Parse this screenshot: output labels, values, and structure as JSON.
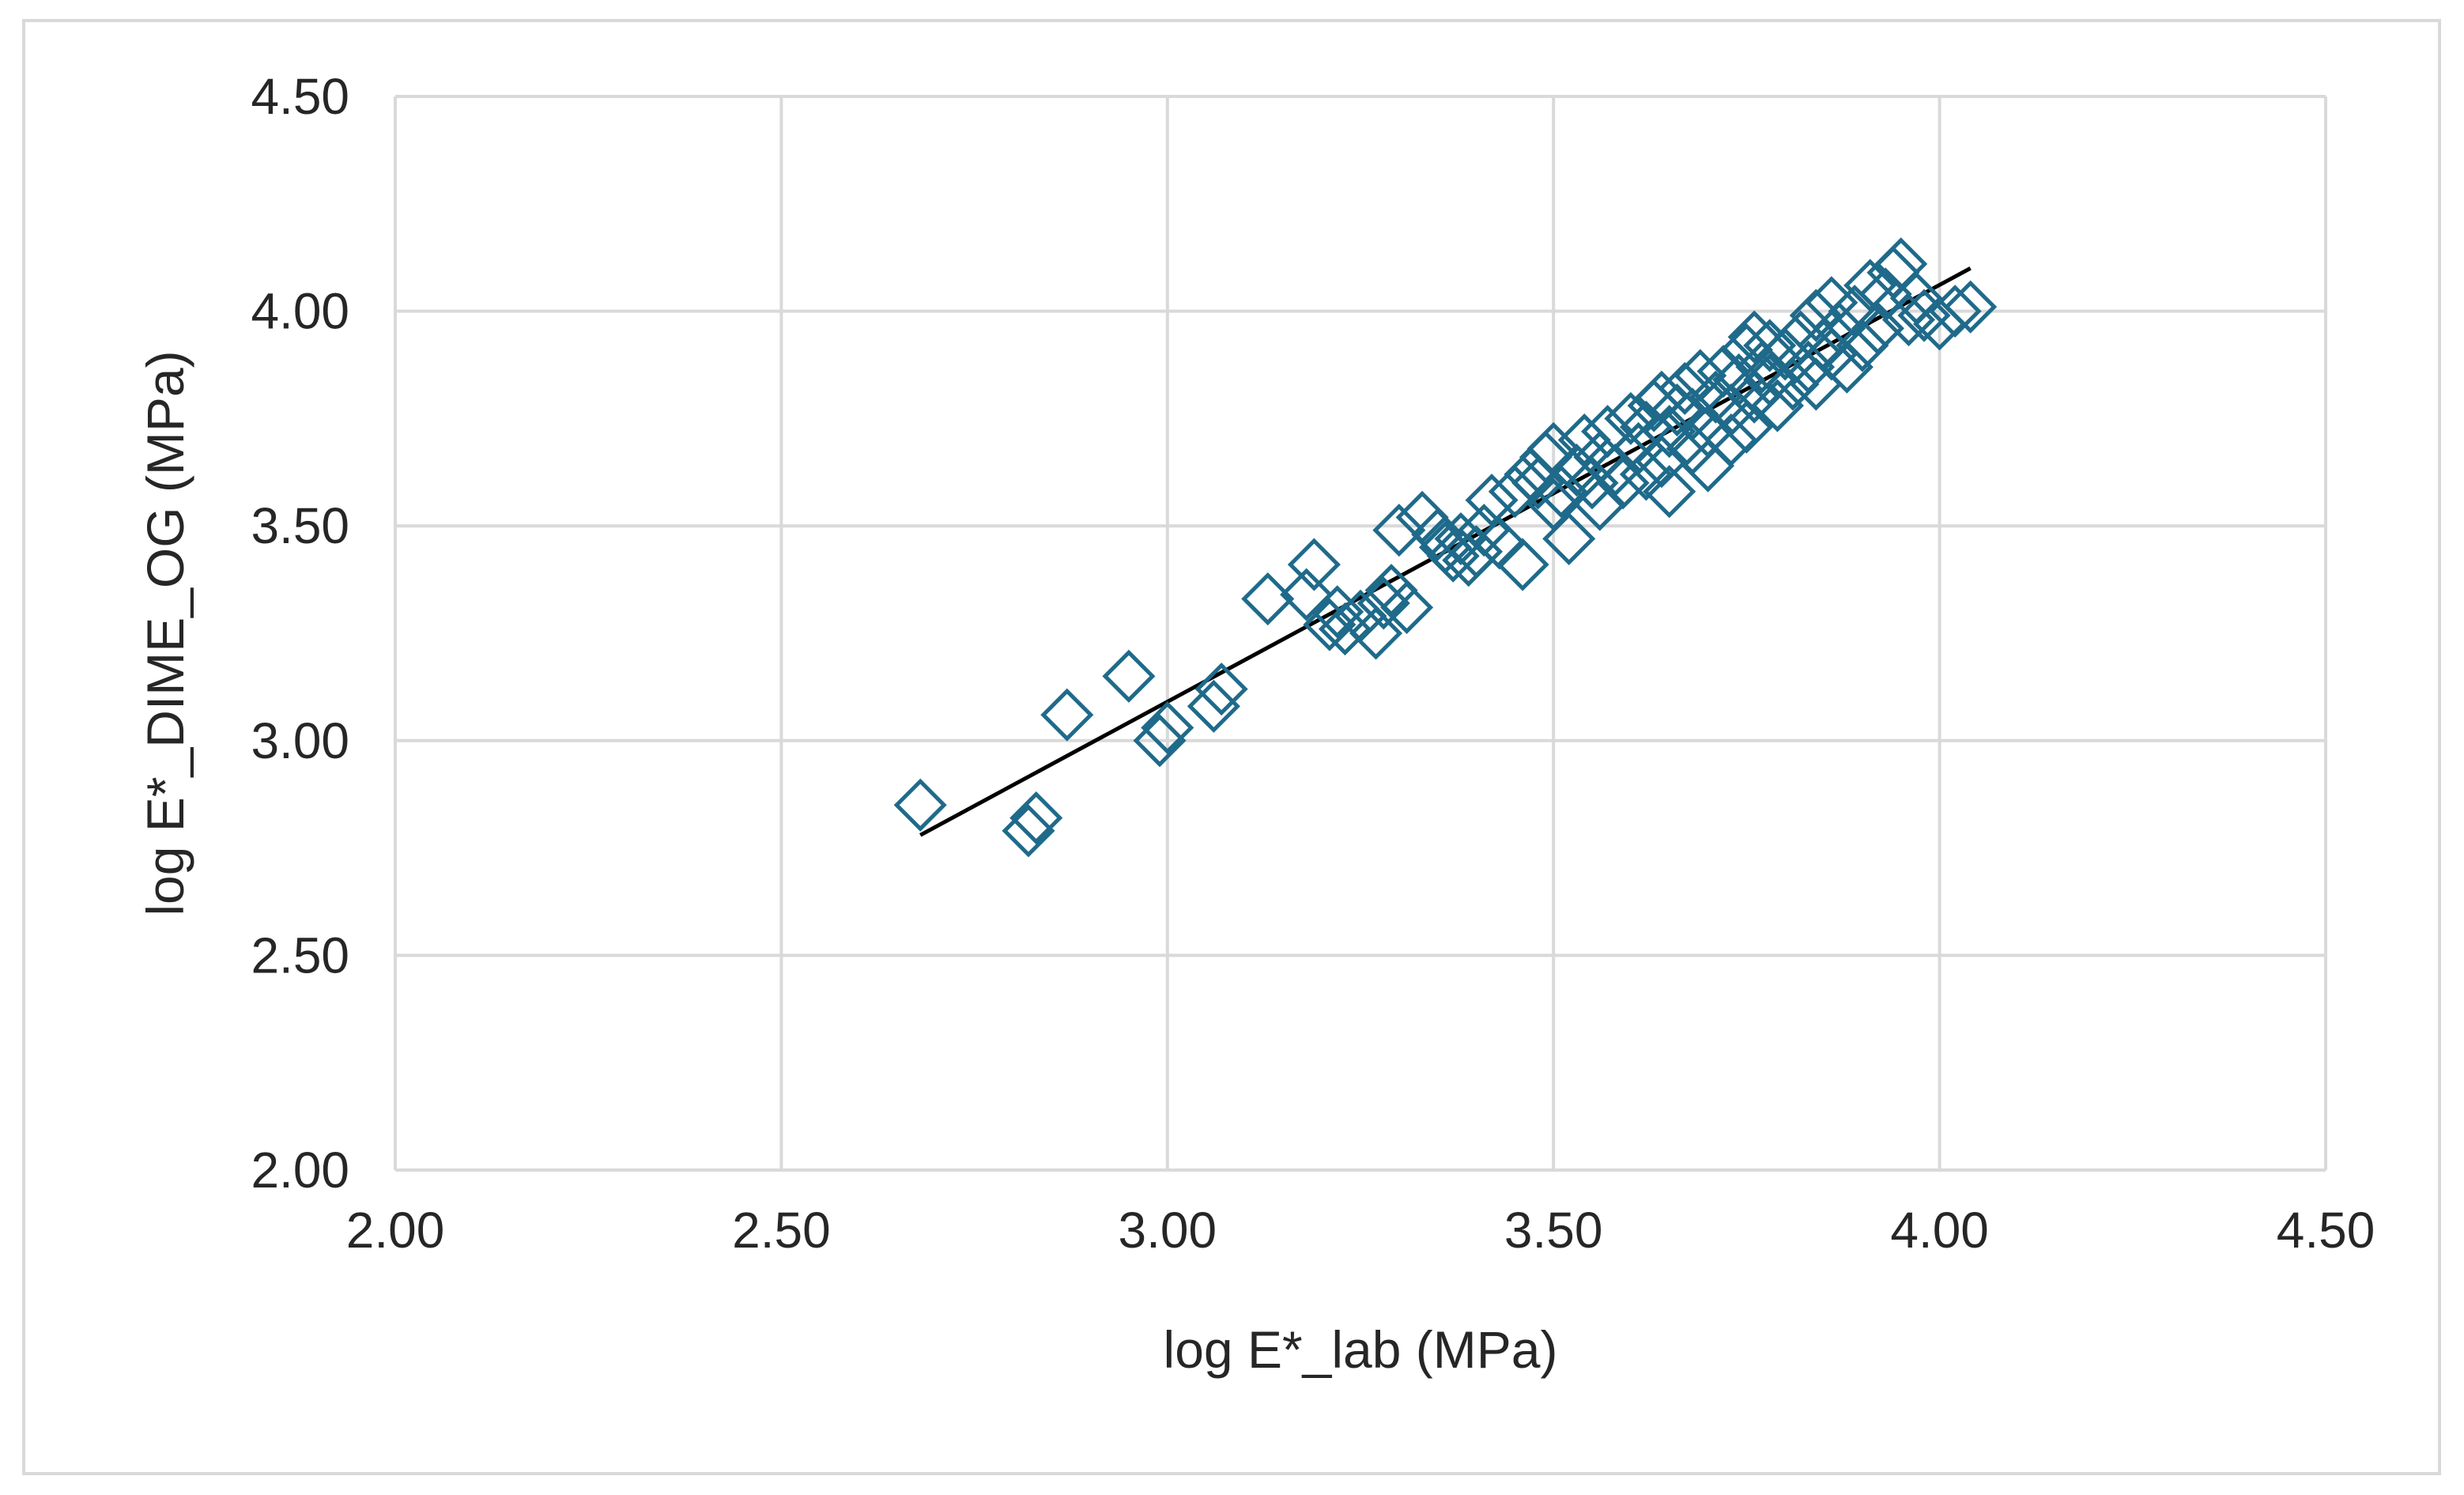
{
  "chart_data": {
    "type": "scatter",
    "title": "",
    "xlabel": "log E*_lab (MPa)",
    "ylabel": "log E*_DIME_OG (MPa)",
    "xlim": [
      2.0,
      4.5
    ],
    "ylim": [
      2.0,
      4.5
    ],
    "x_ticks": [
      "2.00",
      "2.50",
      "3.00",
      "3.50",
      "4.00",
      "4.50"
    ],
    "y_ticks": [
      "2.00",
      "2.50",
      "3.00",
      "3.50",
      "4.00",
      "4.50"
    ],
    "grid": true,
    "legend": "none",
    "marker": "diamond-open",
    "colors": {
      "marker": "#1f6a8a",
      "trendline": "#000000",
      "grid": "#d9d9d9"
    },
    "series": [
      {
        "points": [
          [
            2.68,
            2.85
          ],
          [
            2.82,
            2.79
          ],
          [
            2.83,
            2.82
          ],
          [
            2.87,
            3.06
          ],
          [
            2.95,
            3.15
          ],
          [
            2.99,
            3.0
          ],
          [
            3.0,
            3.03
          ],
          [
            3.06,
            3.08
          ],
          [
            3.07,
            3.12
          ],
          [
            3.13,
            3.33
          ],
          [
            3.18,
            3.34
          ],
          [
            3.19,
            3.41
          ],
          [
            3.21,
            3.27
          ],
          [
            3.22,
            3.3
          ],
          [
            3.23,
            3.26
          ],
          [
            3.25,
            3.29
          ],
          [
            3.27,
            3.25
          ],
          [
            3.28,
            3.32
          ],
          [
            3.29,
            3.35
          ],
          [
            3.3,
            3.49
          ],
          [
            3.31,
            3.31
          ],
          [
            3.33,
            3.52
          ],
          [
            3.35,
            3.48
          ],
          [
            3.36,
            3.45
          ],
          [
            3.37,
            3.43
          ],
          [
            3.38,
            3.47
          ],
          [
            3.39,
            3.42
          ],
          [
            3.4,
            3.44
          ],
          [
            3.41,
            3.49
          ],
          [
            3.42,
            3.56
          ],
          [
            3.43,
            3.46
          ],
          [
            3.45,
            3.58
          ],
          [
            3.46,
            3.41
          ],
          [
            3.47,
            3.62
          ],
          [
            3.48,
            3.6
          ],
          [
            3.49,
            3.66
          ],
          [
            3.5,
            3.68
          ],
          [
            3.5,
            3.55
          ],
          [
            3.51,
            3.58
          ],
          [
            3.52,
            3.47
          ],
          [
            3.53,
            3.63
          ],
          [
            3.54,
            3.7
          ],
          [
            3.55,
            3.6
          ],
          [
            3.56,
            3.66
          ],
          [
            3.56,
            3.55
          ],
          [
            3.57,
            3.72
          ],
          [
            3.58,
            3.63
          ],
          [
            3.59,
            3.6
          ],
          [
            3.6,
            3.75
          ],
          [
            3.61,
            3.68
          ],
          [
            3.62,
            3.62
          ],
          [
            3.62,
            3.73
          ],
          [
            3.63,
            3.78
          ],
          [
            3.64,
            3.65
          ],
          [
            3.64,
            3.8
          ],
          [
            3.65,
            3.58
          ],
          [
            3.65,
            3.72
          ],
          [
            3.66,
            3.77
          ],
          [
            3.67,
            3.82
          ],
          [
            3.68,
            3.68
          ],
          [
            3.68,
            3.76
          ],
          [
            3.69,
            3.85
          ],
          [
            3.7,
            3.64
          ],
          [
            3.7,
            3.72
          ],
          [
            3.71,
            3.8
          ],
          [
            3.72,
            3.86
          ],
          [
            3.73,
            3.7
          ],
          [
            3.73,
            3.77
          ],
          [
            3.74,
            3.84
          ],
          [
            3.75,
            3.91
          ],
          [
            3.75,
            3.73
          ],
          [
            3.76,
            3.94
          ],
          [
            3.76,
            3.8
          ],
          [
            3.77,
            3.87
          ],
          [
            3.78,
            3.92
          ],
          [
            3.78,
            3.84
          ],
          [
            3.79,
            3.78
          ],
          [
            3.8,
            3.9
          ],
          [
            3.81,
            3.83
          ],
          [
            3.82,
            3.94
          ],
          [
            3.83,
            3.87
          ],
          [
            3.84,
            3.99
          ],
          [
            3.84,
            3.83
          ],
          [
            3.85,
            3.92
          ],
          [
            3.86,
            4.02
          ],
          [
            3.86,
            3.9
          ],
          [
            3.87,
            3.96
          ],
          [
            3.88,
            3.87
          ],
          [
            3.89,
            4.0
          ],
          [
            3.9,
            3.92
          ],
          [
            3.91,
            4.06
          ],
          [
            3.92,
            3.96
          ],
          [
            3.93,
            4.04
          ],
          [
            3.94,
            4.09
          ],
          [
            3.95,
            4.11
          ],
          [
            3.96,
            3.98
          ],
          [
            3.97,
            4.03
          ],
          [
            3.98,
            3.99
          ],
          [
            4.0,
            3.97
          ],
          [
            4.02,
            4.0
          ],
          [
            4.04,
            4.01
          ]
        ]
      }
    ],
    "trendline": {
      "x": [
        2.68,
        4.04
      ],
      "y": [
        2.78,
        4.1
      ]
    }
  }
}
